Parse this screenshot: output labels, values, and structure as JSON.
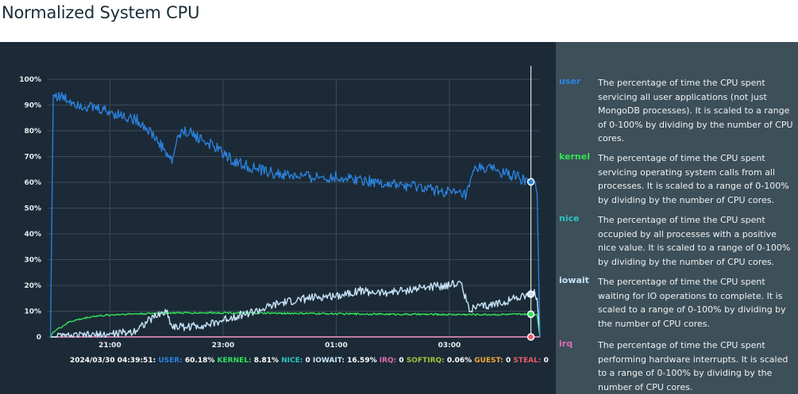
{
  "page_title": "Normalized System CPU",
  "colors": {
    "chart_bg": "#1b2a36",
    "legend_bg": "#3d4f58",
    "user": "#2b84e2",
    "kernel": "#33e05a",
    "nice": "#2bc4c2",
    "iowait": "#c7e3f8",
    "irq": "#e06cb3",
    "softirq": "#a2c23c",
    "guest": "#f2a83b",
    "steal": "#ec5a6a"
  },
  "legend": [
    {
      "key": "user",
      "name": "user",
      "description": "The percentage of time the CPU spent servicing all user applications (not just MongoDB processes). It is scaled to a range of 0-100% by dividing by the number of CPU cores."
    },
    {
      "key": "kernel",
      "name": "kernel",
      "description": "The percentage of time the CPU spent servicing operating system calls from all processes. It is scaled to a range of 0-100% by dividing by the number of CPU cores."
    },
    {
      "key": "nice",
      "name": "nice",
      "description": "The percentage of time the CPU spent occupied by all processes with a positive nice value. It is scaled to a range of 0-100% by dividing by the number of CPU cores."
    },
    {
      "key": "iowait",
      "name": "iowait",
      "description": "The percentage of time the CPU spent waiting for IO operations to complete. It is scaled to a range of 0-100% by dividing by the number of CPU cores."
    },
    {
      "key": "irq",
      "name": "irq",
      "description": "The percentage of time the CPU spent performing hardware interrupts. It is scaled to a range of 0-100% by dividing by the number of CPU cores."
    }
  ],
  "chart_data": {
    "type": "line",
    "ylim": [
      0,
      100
    ],
    "y_ticks": [
      "0",
      "10%",
      "20%",
      "30%",
      "40%",
      "50%",
      "60%",
      "70%",
      "80%",
      "90%",
      "100%"
    ],
    "x_ticks": [
      "21:00",
      "23:00",
      "01:00",
      "03:00"
    ],
    "x_tick_hours": [
      21,
      23,
      25,
      27
    ],
    "x_range_hours": [
      19.9,
      28.6
    ],
    "grid": true,
    "cursor_hour": 28.44,
    "readout": {
      "timestamp": "2024/03/30 04:39:51:",
      "entries": [
        {
          "key": "user",
          "label": "USER",
          "value": "60.18%"
        },
        {
          "key": "kernel",
          "label": "KERNEL",
          "value": "8.81%"
        },
        {
          "key": "nice",
          "label": "NICE",
          "value": "0"
        },
        {
          "key": "iowait",
          "label": "IOWAIT",
          "value": "16.59%"
        },
        {
          "key": "irq",
          "label": "IRQ",
          "value": "0"
        },
        {
          "key": "softirq",
          "label": "SOFTIRQ",
          "value": "0.06%"
        },
        {
          "key": "guest",
          "label": "GUEST",
          "value": "0"
        },
        {
          "key": "steal",
          "label": "STEAL",
          "value": "0"
        }
      ]
    },
    "series": [
      {
        "name": "user",
        "x": [
          19.95,
          20.0,
          20.15,
          20.5,
          20.9,
          21.2,
          21.5,
          21.7,
          21.95,
          22.1,
          22.2,
          22.35,
          22.6,
          22.9,
          23.2,
          23.6,
          24.0,
          24.5,
          25.0,
          25.5,
          26.0,
          26.5,
          27.0,
          27.3,
          27.45,
          27.6,
          27.9,
          28.2,
          28.4,
          28.5,
          28.55,
          28.6
        ],
        "y": [
          0,
          94,
          93,
          90,
          88,
          86,
          84,
          80,
          73,
          68,
          78,
          80,
          77,
          73,
          68,
          65,
          63,
          62,
          62,
          61,
          59,
          58,
          56,
          55,
          65,
          66,
          64,
          62,
          60,
          60,
          56,
          0
        ]
      },
      {
        "name": "kernel",
        "x": [
          19.95,
          20.0,
          20.3,
          20.7,
          21.2,
          22.0,
          23.0,
          24.0,
          25.0,
          26.0,
          27.0,
          28.0,
          28.4,
          28.5,
          28.55,
          28.6
        ],
        "y": [
          0,
          2,
          6,
          8,
          8.8,
          9.3,
          9.4,
          9.2,
          9.0,
          8.8,
          8.7,
          8.7,
          8.81,
          8.8,
          8.5,
          0
        ]
      },
      {
        "name": "nice",
        "x": [
          19.95,
          28.6
        ],
        "y": [
          0,
          0
        ]
      },
      {
        "name": "iowait",
        "x": [
          19.95,
          20.6,
          21.0,
          21.4,
          21.8,
          22.0,
          22.1,
          22.4,
          22.8,
          23.2,
          23.6,
          24.0,
          24.5,
          25.0,
          25.4,
          25.8,
          26.2,
          26.5,
          26.9,
          27.2,
          27.35,
          27.7,
          28.0,
          28.4,
          28.5,
          28.55,
          28.6
        ],
        "y": [
          0,
          0.5,
          1,
          2,
          8,
          10,
          4,
          4,
          5,
          8,
          10,
          13,
          15,
          16,
          18,
          17,
          18,
          19,
          20,
          21,
          11,
          12,
          14,
          16.59,
          17,
          15,
          0
        ]
      },
      {
        "name": "irq",
        "x": [
          19.95,
          28.6
        ],
        "y": [
          0,
          0
        ]
      },
      {
        "name": "softirq",
        "x": [
          19.95,
          28.6
        ],
        "y": [
          0.06,
          0.06
        ]
      },
      {
        "name": "guest",
        "x": [
          19.95,
          28.6
        ],
        "y": [
          0,
          0
        ]
      },
      {
        "name": "steal",
        "x": [
          19.95,
          28.6
        ],
        "y": [
          0,
          0
        ]
      }
    ]
  }
}
